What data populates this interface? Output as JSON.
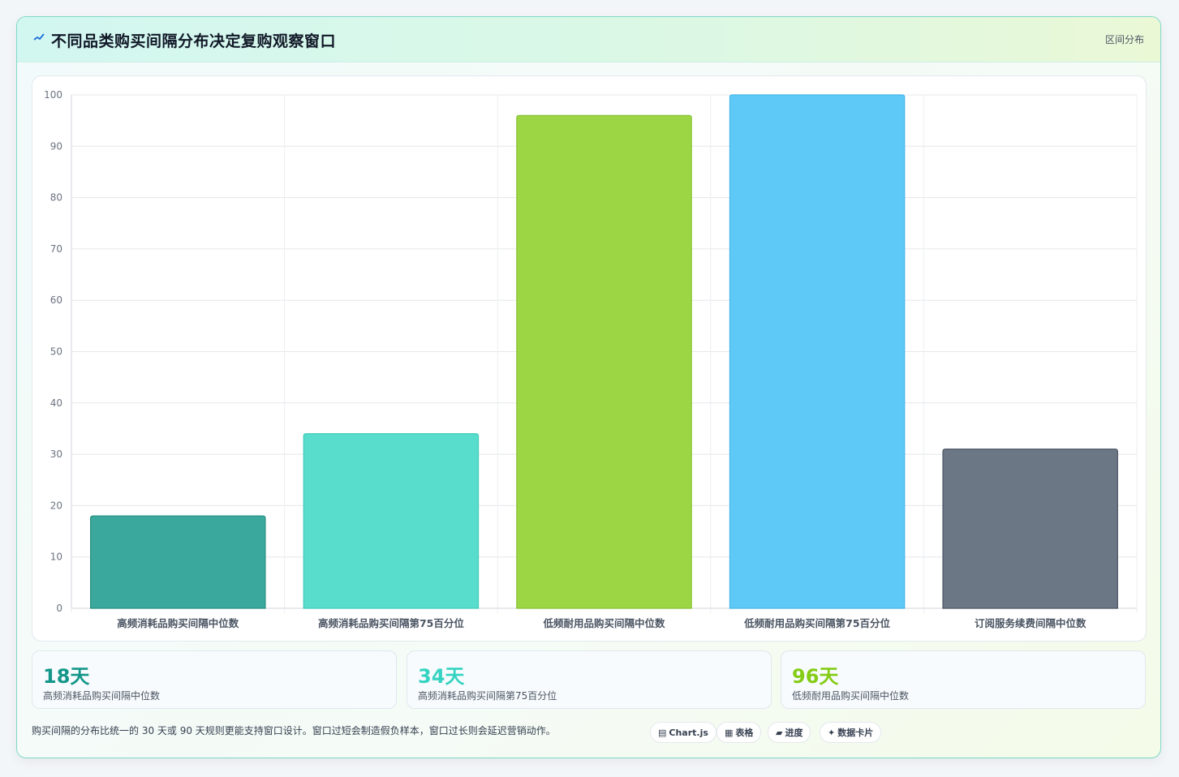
{
  "header": {
    "title": "不同品类购买间隔分布决定复购观察窗口",
    "tag": "区间分布"
  },
  "chart_data": {
    "type": "bar",
    "categories": [
      "高频消耗品购买间隔中位数",
      "高频消耗品购买间隔第75百分位",
      "低频耐用品购买间隔中位数",
      "低频耐用品购买间隔第75百分位",
      "订阅服务续费间隔中位数"
    ],
    "values": [
      18,
      34,
      96,
      100,
      31
    ],
    "colors": [
      "#3aa89c",
      "#58ddcc",
      "#9cd645",
      "#5ec9f7",
      "#6c7786"
    ],
    "borders": [
      "#2a8f83",
      "#3fcdb9",
      "#86c232",
      "#47b8ea",
      "#4b5563"
    ],
    "ylim": [
      0,
      100
    ],
    "yticks": [
      0,
      10,
      20,
      30,
      40,
      50,
      60,
      70,
      80,
      90,
      100
    ],
    "grid": true
  },
  "kpis": [
    {
      "value": "18天",
      "label": "高频消耗品购买间隔中位数",
      "color": "#14978a"
    },
    {
      "value": "34天",
      "label": "高频消耗品购买间隔第75百分位",
      "color": "#35d3c1"
    },
    {
      "value": "96天",
      "label": "低频耐用品购买间隔中位数",
      "color": "#84cc16"
    }
  ],
  "footer": {
    "note": "购买间隔的分布比统一的 30 天或 90 天规则更能支持窗口设计。窗口过短会制造假负样本，窗口过长则会延迟营销动作。",
    "pills": [
      {
        "icon": "▤",
        "label": "Chart.js"
      },
      {
        "icon": "▦",
        "label": "表格"
      },
      {
        "icon": "▰",
        "label": "进度"
      },
      {
        "icon": "✦",
        "label": "数据卡片"
      }
    ]
  }
}
